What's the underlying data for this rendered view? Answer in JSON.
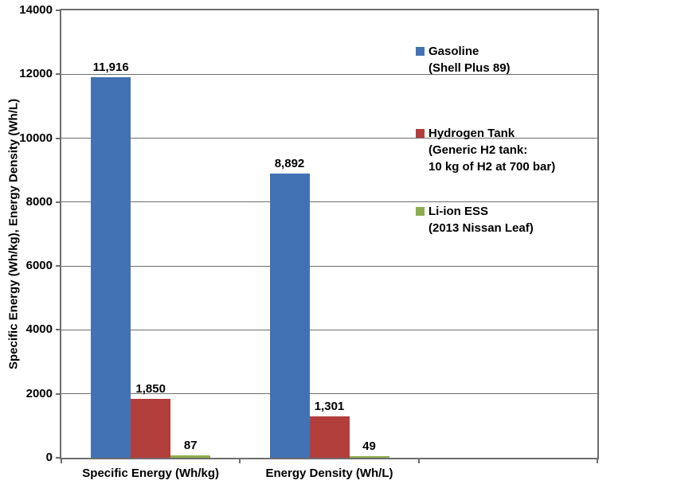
{
  "chart_data": {
    "type": "bar",
    "title": "",
    "xlabel": "",
    "ylabel": "Specific Energy (Wh/kg), Energy Density (Wh/L)",
    "ylim": [
      0,
      14000
    ],
    "yticks": [
      0,
      2000,
      4000,
      6000,
      8000,
      10000,
      12000,
      14000
    ],
    "grid": true,
    "legend_position": "inside-right",
    "categories": [
      "Specific Energy (Wh/kg)",
      "Energy Density (Wh/L)"
    ],
    "series": [
      {
        "name": "Gasoline",
        "legend_lines": [
          "Gasoline",
          "(Shell Plus 89)"
        ],
        "color": "#4272B4",
        "values": [
          11916,
          8892
        ],
        "labels": [
          "11,916",
          "8,892"
        ]
      },
      {
        "name": "Hydrogen Tank",
        "legend_lines": [
          "Hydrogen Tank",
          "(Generic H2 tank:",
          "10 kg of H2 at 700 bar)"
        ],
        "color": "#B23E3C",
        "values": [
          1850,
          1301
        ],
        "labels": [
          "1,850",
          "1,301"
        ]
      },
      {
        "name": "Li-ion ESS",
        "legend_lines": [
          "Li-ion ESS",
          "(2013 Nissan Leaf)"
        ],
        "color": "#8EAD4E",
        "values": [
          87,
          49
        ],
        "labels": [
          "87",
          "49"
        ]
      }
    ],
    "colors": {
      "grid": "#6E6E6E",
      "axis": "#6E6E6E",
      "text": "#000000",
      "background": "#FFFFFF"
    }
  }
}
